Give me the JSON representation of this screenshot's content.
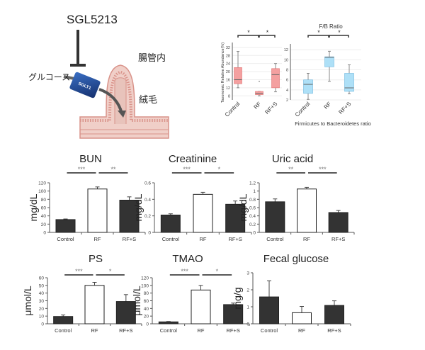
{
  "illustration": {
    "drug": "SGL5213",
    "lumen": "腸管内",
    "glucose": "グルコース",
    "transporter": "SGLT1",
    "villi": "絨毛"
  },
  "chart_data": [
    {
      "type": "boxplot",
      "title": "",
      "ylabel": "Taxonomic Relative Abundance(%)",
      "xlabel": "",
      "categories": [
        "Control",
        "RF",
        "RF+S"
      ],
      "yticks": [
        "8",
        "12",
        "16",
        "20",
        "24",
        "28",
        "32"
      ],
      "ylim": [
        6,
        33
      ],
      "color": "#f4a0a0",
      "stroke": "#e07070",
      "boxes": [
        {
          "min": 12,
          "q1": 14,
          "median": 16,
          "q3": 22,
          "max": 30
        },
        {
          "min": 8,
          "q1": 8.6,
          "median": 9.2,
          "q3": 10.2,
          "max": 10.2,
          "outlier": 15.2
        },
        {
          "min": 10,
          "q1": 12,
          "median": 18.5,
          "q3": 21.5,
          "max": 24
        }
      ],
      "significance": [
        {
          "from": 0,
          "to": 1,
          "label": "*"
        },
        {
          "from": 1,
          "to": 2,
          "label": "*"
        }
      ]
    },
    {
      "type": "boxplot",
      "title": "F/B Ratio",
      "ylabel": "",
      "xlabel": "Firmicutes to Bacteroidetes ratio",
      "categories": [
        "Control",
        "RF",
        "RF+S"
      ],
      "yticks": [
        "2",
        "4",
        "6",
        "8",
        "10",
        "12"
      ],
      "ylim": [
        2,
        12.6
      ],
      "color": "#aee0f7",
      "stroke": "#70b8e0",
      "boxes": [
        {
          "min": 2.1,
          "q1": 3.3,
          "median": 5.1,
          "q3": 6.0,
          "max": 7.3
        },
        {
          "min": 5.7,
          "q1": 8.6,
          "median": 10.5,
          "q3": 10.6,
          "max": 11.7
        },
        {
          "min": 3.2,
          "q1": 3.7,
          "median": 4.4,
          "q3": 7.3,
          "max": 9.0
        }
      ],
      "significance": [
        {
          "from": 0,
          "to": 1,
          "label": "*"
        },
        {
          "from": 1,
          "to": 2,
          "label": "*"
        }
      ]
    },
    {
      "type": "bar",
      "title": "BUN",
      "ylabel": "mg/dL",
      "categories": [
        "Control",
        "RF",
        "RF+S"
      ],
      "values": [
        31,
        105,
        78
      ],
      "errors": [
        1.5,
        5,
        8
      ],
      "ylim": [
        0,
        120
      ],
      "yticks": [
        "0",
        "20",
        "40",
        "60",
        "80",
        "100",
        "120"
      ],
      "fills": [
        "#333333",
        "#ffffff",
        "#333333"
      ],
      "significance": [
        {
          "from": 0,
          "to": 1,
          "label": "***"
        },
        {
          "from": 1,
          "to": 2,
          "label": "**"
        }
      ]
    },
    {
      "type": "bar",
      "title": "Creatinine",
      "ylabel": "mg/dL",
      "categories": [
        "Control",
        "RF",
        "RF+S"
      ],
      "values": [
        0.21,
        0.46,
        0.34
      ],
      "errors": [
        0.015,
        0.025,
        0.04
      ],
      "ylim": [
        0,
        0.6
      ],
      "yticks": [
        "0",
        "0.2",
        "0.4",
        "0.6"
      ],
      "fills": [
        "#333333",
        "#ffffff",
        "#333333"
      ],
      "significance": [
        {
          "from": 0,
          "to": 1,
          "label": "***"
        },
        {
          "from": 1,
          "to": 2,
          "label": "*"
        }
      ]
    },
    {
      "type": "bar",
      "title": "Uric acid",
      "ylabel": "mg/dL",
      "categories": [
        "Control",
        "RF",
        "RF+S"
      ],
      "values": [
        0.74,
        1.05,
        0.48
      ],
      "errors": [
        0.07,
        0.04,
        0.05
      ],
      "ylim": [
        0,
        1.2
      ],
      "yticks": [
        "0",
        "0.2",
        "0.4",
        "0.6",
        "0.8",
        "1",
        "1.2"
      ],
      "fills": [
        "#333333",
        "#ffffff",
        "#333333"
      ],
      "significance": [
        {
          "from": 0,
          "to": 1,
          "label": "**"
        },
        {
          "from": 1,
          "to": 2,
          "label": "***"
        }
      ]
    },
    {
      "type": "bar",
      "title": "PS",
      "ylabel": "μmol/L",
      "categories": [
        "Control",
        "RF",
        "RF+S"
      ],
      "values": [
        9.5,
        50,
        29
      ],
      "errors": [
        2,
        4,
        9
      ],
      "ylim": [
        0,
        60
      ],
      "yticks": [
        "0",
        "10",
        "20",
        "30",
        "40",
        "50",
        "60"
      ],
      "fills": [
        "#333333",
        "#ffffff",
        "#333333"
      ],
      "significance": [
        {
          "from": 0,
          "to": 1,
          "label": "***"
        },
        {
          "from": 1,
          "to": 2,
          "label": "*"
        }
      ]
    },
    {
      "type": "bar",
      "title": "TMAO",
      "ylabel": "μmol/L",
      "categories": [
        "Control",
        "RF",
        "RF+S"
      ],
      "values": [
        5,
        88,
        50
      ],
      "errors": [
        1,
        12,
        4
      ],
      "ylim": [
        0,
        120
      ],
      "yticks": [
        "0",
        "20",
        "40",
        "60",
        "80",
        "100",
        "120"
      ],
      "fills": [
        "#333333",
        "#ffffff",
        "#333333"
      ],
      "significance": [
        {
          "from": 0,
          "to": 1,
          "label": "***"
        },
        {
          "from": 1,
          "to": 2,
          "label": "*"
        }
      ]
    },
    {
      "type": "bar",
      "title": "Fecal glucose",
      "ylabel": "mg/g",
      "categories": [
        "Control",
        "RF",
        "RF+S"
      ],
      "values": [
        1.58,
        0.65,
        1.08
      ],
      "errors": [
        0.95,
        0.37,
        0.27
      ],
      "ylim": [
        0,
        3
      ],
      "yticks": [
        "0",
        "1",
        "2",
        "3"
      ],
      "fills": [
        "#333333",
        "#ffffff",
        "#333333"
      ],
      "significance": []
    }
  ]
}
